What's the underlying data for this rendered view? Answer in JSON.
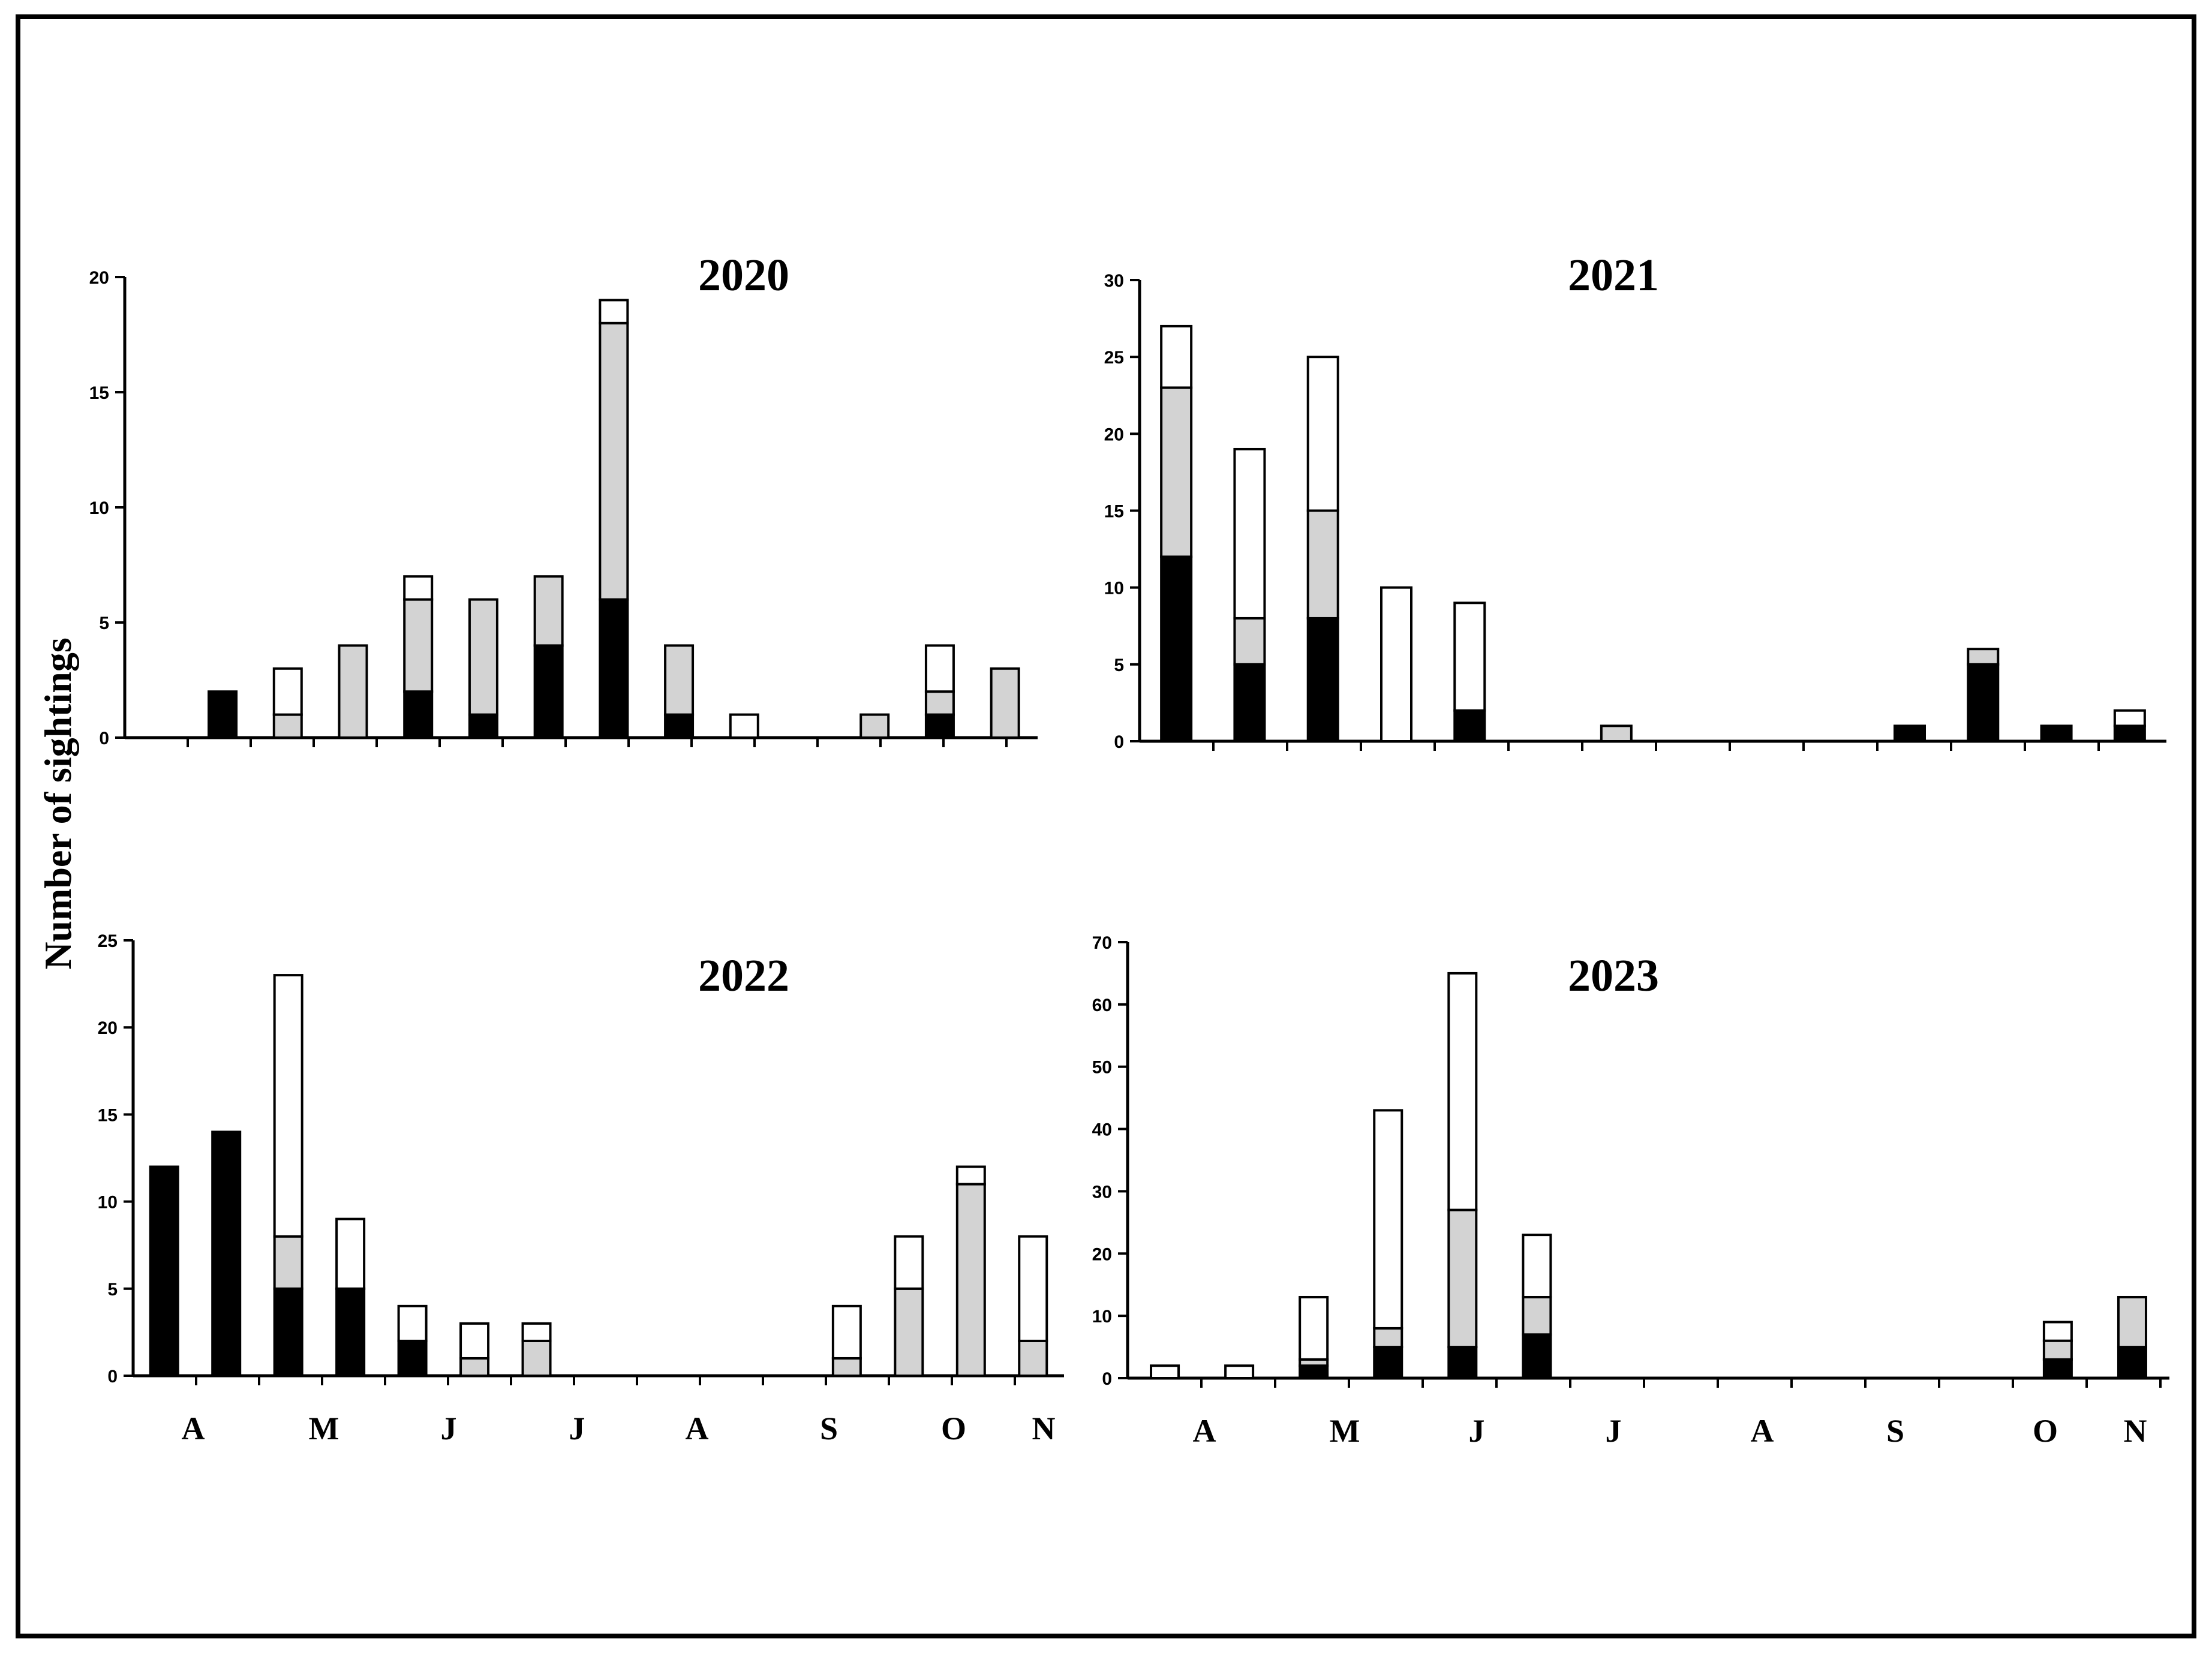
{
  "figure": {
    "ylabel": "Number of sightings"
  },
  "colors": {
    "black_segment": "#000000",
    "grey_segment": "#d3d3d3",
    "white_segment": "#ffffff",
    "outline": "#000000"
  },
  "chart_data": [
    {
      "type": "bar",
      "stacked": true,
      "title": "2020",
      "ylim": [
        0,
        20
      ],
      "yticks": [
        0,
        5,
        10,
        15,
        20
      ],
      "month_labels": [],
      "series_colors": [
        "black",
        "grey",
        "white"
      ],
      "bars": [
        {
          "x": 1,
          "values": [
            2,
            0,
            0
          ]
        },
        {
          "x": 2,
          "values": [
            0,
            1,
            2
          ]
        },
        {
          "x": 3,
          "values": [
            0,
            4,
            0
          ]
        },
        {
          "x": 4,
          "values": [
            2,
            4,
            1
          ]
        },
        {
          "x": 5,
          "values": [
            1,
            5,
            0
          ]
        },
        {
          "x": 6,
          "values": [
            4,
            3,
            0
          ]
        },
        {
          "x": 7,
          "values": [
            6,
            12,
            1
          ]
        },
        {
          "x": 8,
          "values": [
            1,
            3,
            0
          ]
        },
        {
          "x": 9,
          "values": [
            0,
            0,
            1
          ]
        },
        {
          "x": 11,
          "values": [
            0,
            1,
            0
          ]
        },
        {
          "x": 12,
          "values": [
            1,
            1,
            2
          ]
        },
        {
          "x": 13,
          "values": [
            0,
            3,
            0
          ]
        }
      ]
    },
    {
      "type": "bar",
      "stacked": true,
      "title": "2021",
      "ylim": [
        0,
        30
      ],
      "yticks": [
        0,
        5,
        10,
        15,
        20,
        25,
        30
      ],
      "month_labels": [],
      "series_colors": [
        "black",
        "grey",
        "white"
      ],
      "bars": [
        {
          "x": 0,
          "values": [
            12,
            11,
            4
          ]
        },
        {
          "x": 1,
          "values": [
            5,
            3,
            11
          ]
        },
        {
          "x": 2,
          "values": [
            8,
            7,
            10
          ]
        },
        {
          "x": 3,
          "values": [
            0,
            0,
            10
          ]
        },
        {
          "x": 4,
          "values": [
            2,
            0,
            7
          ]
        },
        {
          "x": 6,
          "values": [
            0,
            1,
            0
          ]
        },
        {
          "x": 10,
          "values": [
            1,
            0,
            0
          ]
        },
        {
          "x": 11,
          "values": [
            5,
            1,
            0
          ]
        },
        {
          "x": 12,
          "values": [
            1,
            0,
            0
          ]
        },
        {
          "x": 13,
          "values": [
            1,
            0,
            1
          ]
        }
      ]
    },
    {
      "type": "bar",
      "stacked": true,
      "title": "2022",
      "ylim": [
        0,
        25
      ],
      "yticks": [
        0,
        5,
        10,
        15,
        20,
        25
      ],
      "month_labels": [
        "A",
        "M",
        "J",
        "J",
        "A",
        "S",
        "O",
        "N"
      ],
      "series_colors": [
        "black",
        "grey",
        "white"
      ],
      "bars": [
        {
          "x": 0,
          "values": [
            12,
            0,
            0
          ]
        },
        {
          "x": 1,
          "values": [
            14,
            0,
            0
          ]
        },
        {
          "x": 2,
          "values": [
            5,
            3,
            15
          ]
        },
        {
          "x": 3,
          "values": [
            5,
            0,
            4
          ]
        },
        {
          "x": 4,
          "values": [
            2,
            0,
            2
          ]
        },
        {
          "x": 5,
          "values": [
            0,
            1,
            2
          ]
        },
        {
          "x": 6,
          "values": [
            0,
            2,
            1
          ]
        },
        {
          "x": 11,
          "values": [
            0,
            1,
            3
          ]
        },
        {
          "x": 12,
          "values": [
            0,
            5,
            3
          ]
        },
        {
          "x": 13,
          "values": [
            0,
            11,
            1
          ]
        },
        {
          "x": 14,
          "values": [
            0,
            2,
            6
          ]
        }
      ]
    },
    {
      "type": "bar",
      "stacked": true,
      "title": "2023",
      "ylim": [
        0,
        70
      ],
      "yticks": [
        0,
        10,
        20,
        30,
        40,
        50,
        60,
        70
      ],
      "month_labels": [
        "A",
        "M",
        "J",
        "J",
        "A",
        "S",
        "O",
        "N"
      ],
      "series_colors": [
        "black",
        "grey",
        "white"
      ],
      "bars": [
        {
          "x": 0,
          "values": [
            0,
            0,
            2
          ]
        },
        {
          "x": 1,
          "values": [
            0,
            0,
            2
          ]
        },
        {
          "x": 2,
          "values": [
            2,
            1,
            10
          ]
        },
        {
          "x": 3,
          "values": [
            5,
            3,
            35
          ]
        },
        {
          "x": 4,
          "values": [
            5,
            22,
            38
          ]
        },
        {
          "x": 5,
          "values": [
            7,
            6,
            10
          ]
        },
        {
          "x": 12,
          "values": [
            3,
            3,
            3
          ]
        },
        {
          "x": 13,
          "values": [
            5,
            8,
            0
          ]
        }
      ]
    }
  ]
}
